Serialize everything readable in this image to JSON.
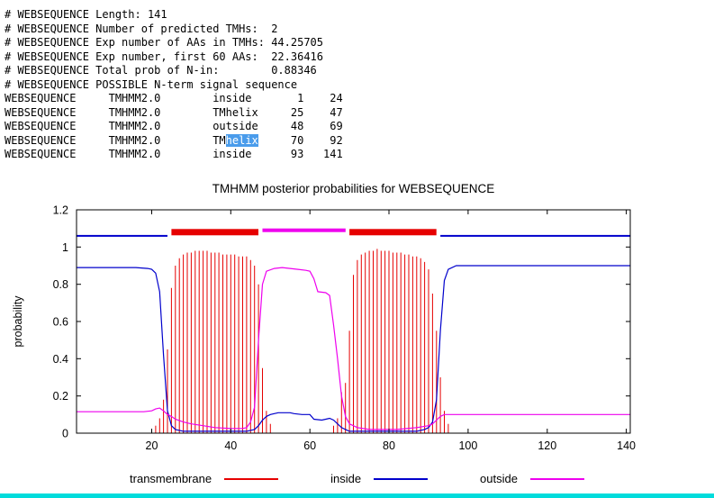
{
  "page": {
    "bg": "#ffffff",
    "bottom_bar_color": "#00dcdc"
  },
  "text_output": {
    "selection": {
      "bg": "#4a9ceb",
      "fg": "#ffffff"
    },
    "lines_before": [
      "# WEBSEQUENCE Length: 141",
      "# WEBSEQUENCE Number of predicted TMHs:  2",
      "# WEBSEQUENCE Exp number of AAs in TMHs: 44.25705",
      "# WEBSEQUENCE Exp number, first 60 AAs:  22.36416",
      "# WEBSEQUENCE Total prob of N-in:        0.88346",
      "# WEBSEQUENCE POSSIBLE N-term signal sequence",
      "WEBSEQUENCE     TMHMM2.0        inside       1    24",
      "WEBSEQUENCE     TMHMM2.0        TMhelix     25    47",
      "WEBSEQUENCE     TMHMM2.0        outside     48    69"
    ],
    "highlight_line": {
      "pre": "WEBSEQUENCE     TMHMM2.0        TM",
      "selected": "helix",
      "post": "     70    92"
    },
    "lines_after": [
      "WEBSEQUENCE     TMHMM2.0        inside      93   141"
    ]
  },
  "chart_data": {
    "type": "line",
    "title": "TMHMM posterior probabilities for WEBSEQUENCE",
    "ylabel": "probability",
    "xlabel": "",
    "xlim": [
      1,
      141
    ],
    "ylim": [
      0,
      1.2
    ],
    "xticks": [
      20,
      40,
      60,
      80,
      100,
      120,
      140
    ],
    "yticks": [
      0,
      0.2,
      0.4,
      0.6,
      0.8,
      1,
      1.2
    ],
    "grid": false,
    "legend_position": "bottom",
    "colors": {
      "transmembrane": "#e60000",
      "inside": "#0000cc",
      "outside": "#ee00ee"
    },
    "legend": [
      {
        "label": "transmembrane",
        "series": "transmembrane"
      },
      {
        "label": "inside",
        "series": "inside"
      },
      {
        "label": "outside",
        "series": "outside"
      }
    ],
    "predicted_topology_bars": [
      {
        "series": "inside",
        "from": 1,
        "to": 24,
        "y": 1.06,
        "px": 2
      },
      {
        "series": "transmembrane",
        "from": 25,
        "to": 47,
        "y": 1.08,
        "px": 7
      },
      {
        "series": "outside",
        "from": 48,
        "to": 69,
        "y": 1.09,
        "px": 4
      },
      {
        "series": "transmembrane",
        "from": 70,
        "to": 92,
        "y": 1.08,
        "px": 7
      },
      {
        "series": "inside",
        "from": 93,
        "to": 141,
        "y": 1.06,
        "px": 2
      }
    ],
    "series": {
      "transmembrane_impulses": [
        [
          21,
          0.04
        ],
        [
          22,
          0.08
        ],
        [
          23,
          0.18
        ],
        [
          24,
          0.45
        ],
        [
          25,
          0.78
        ],
        [
          26,
          0.9
        ],
        [
          27,
          0.94
        ],
        [
          28,
          0.96
        ],
        [
          29,
          0.97
        ],
        [
          30,
          0.97
        ],
        [
          31,
          0.98
        ],
        [
          32,
          0.98
        ],
        [
          33,
          0.98
        ],
        [
          34,
          0.98
        ],
        [
          35,
          0.97
        ],
        [
          36,
          0.97
        ],
        [
          37,
          0.97
        ],
        [
          38,
          0.96
        ],
        [
          39,
          0.96
        ],
        [
          40,
          0.96
        ],
        [
          41,
          0.96
        ],
        [
          42,
          0.95
        ],
        [
          43,
          0.95
        ],
        [
          44,
          0.95
        ],
        [
          45,
          0.93
        ],
        [
          46,
          0.9
        ],
        [
          47,
          0.8
        ],
        [
          48,
          0.35
        ],
        [
          49,
          0.12
        ],
        [
          50,
          0.05
        ],
        [
          66,
          0.04
        ],
        [
          67,
          0.08
        ],
        [
          68,
          0.22
        ],
        [
          69,
          0.27
        ],
        [
          70,
          0.55
        ],
        [
          71,
          0.85
        ],
        [
          72,
          0.93
        ],
        [
          73,
          0.96
        ],
        [
          74,
          0.97
        ],
        [
          75,
          0.98
        ],
        [
          76,
          0.98
        ],
        [
          77,
          0.99
        ],
        [
          78,
          0.98
        ],
        [
          79,
          0.98
        ],
        [
          80,
          0.98
        ],
        [
          81,
          0.97
        ],
        [
          82,
          0.97
        ],
        [
          83,
          0.97
        ],
        [
          84,
          0.96
        ],
        [
          85,
          0.96
        ],
        [
          86,
          0.95
        ],
        [
          87,
          0.95
        ],
        [
          88,
          0.94
        ],
        [
          89,
          0.92
        ],
        [
          90,
          0.88
        ],
        [
          91,
          0.75
        ],
        [
          92,
          0.55
        ],
        [
          93,
          0.3
        ],
        [
          94,
          0.12
        ],
        [
          95,
          0.05
        ]
      ],
      "inside": [
        [
          1,
          0.89
        ],
        [
          16,
          0.89
        ],
        [
          19,
          0.885
        ],
        [
          20,
          0.88
        ],
        [
          21,
          0.86
        ],
        [
          22,
          0.76
        ],
        [
          23,
          0.42
        ],
        [
          24,
          0.12
        ],
        [
          25,
          0.04
        ],
        [
          26,
          0.02
        ],
        [
          28,
          0.01
        ],
        [
          44,
          0.01
        ],
        [
          46,
          0.02
        ],
        [
          47,
          0.04
        ],
        [
          48,
          0.07
        ],
        [
          49,
          0.09
        ],
        [
          50,
          0.1
        ],
        [
          52,
          0.11
        ],
        [
          55,
          0.11
        ],
        [
          56,
          0.105
        ],
        [
          58,
          0.1
        ],
        [
          60,
          0.1
        ],
        [
          61,
          0.075
        ],
        [
          63,
          0.07
        ],
        [
          64,
          0.075
        ],
        [
          65,
          0.08
        ],
        [
          66,
          0.07
        ],
        [
          67,
          0.05
        ],
        [
          68,
          0.03
        ],
        [
          69,
          0.02
        ],
        [
          70,
          0.01
        ],
        [
          87,
          0.01
        ],
        [
          89,
          0.02
        ],
        [
          90,
          0.03
        ],
        [
          91,
          0.06
        ],
        [
          92,
          0.18
        ],
        [
          93,
          0.55
        ],
        [
          94,
          0.82
        ],
        [
          95,
          0.88
        ],
        [
          97,
          0.9
        ],
        [
          141,
          0.9
        ]
      ],
      "outside": [
        [
          1,
          0.115
        ],
        [
          18,
          0.115
        ],
        [
          20,
          0.12
        ],
        [
          21,
          0.13
        ],
        [
          22,
          0.135
        ],
        [
          23,
          0.12
        ],
        [
          24,
          0.1
        ],
        [
          25,
          0.09
        ],
        [
          26,
          0.075
        ],
        [
          28,
          0.06
        ],
        [
          30,
          0.05
        ],
        [
          33,
          0.04
        ],
        [
          36,
          0.03
        ],
        [
          40,
          0.025
        ],
        [
          43,
          0.025
        ],
        [
          44,
          0.03
        ],
        [
          45,
          0.06
        ],
        [
          46,
          0.14
        ],
        [
          47,
          0.5
        ],
        [
          48,
          0.8
        ],
        [
          49,
          0.87
        ],
        [
          51,
          0.885
        ],
        [
          53,
          0.89
        ],
        [
          55,
          0.885
        ],
        [
          57,
          0.88
        ],
        [
          59,
          0.875
        ],
        [
          60,
          0.87
        ],
        [
          61,
          0.83
        ],
        [
          62,
          0.76
        ],
        [
          64,
          0.755
        ],
        [
          65,
          0.74
        ],
        [
          66,
          0.58
        ],
        [
          67,
          0.4
        ],
        [
          68,
          0.2
        ],
        [
          69,
          0.09
        ],
        [
          70,
          0.05
        ],
        [
          72,
          0.03
        ],
        [
          75,
          0.02
        ],
        [
          82,
          0.02
        ],
        [
          87,
          0.03
        ],
        [
          90,
          0.04
        ],
        [
          91,
          0.05
        ],
        [
          92,
          0.07
        ],
        [
          93,
          0.09
        ],
        [
          94,
          0.1
        ],
        [
          141,
          0.1
        ]
      ]
    }
  }
}
